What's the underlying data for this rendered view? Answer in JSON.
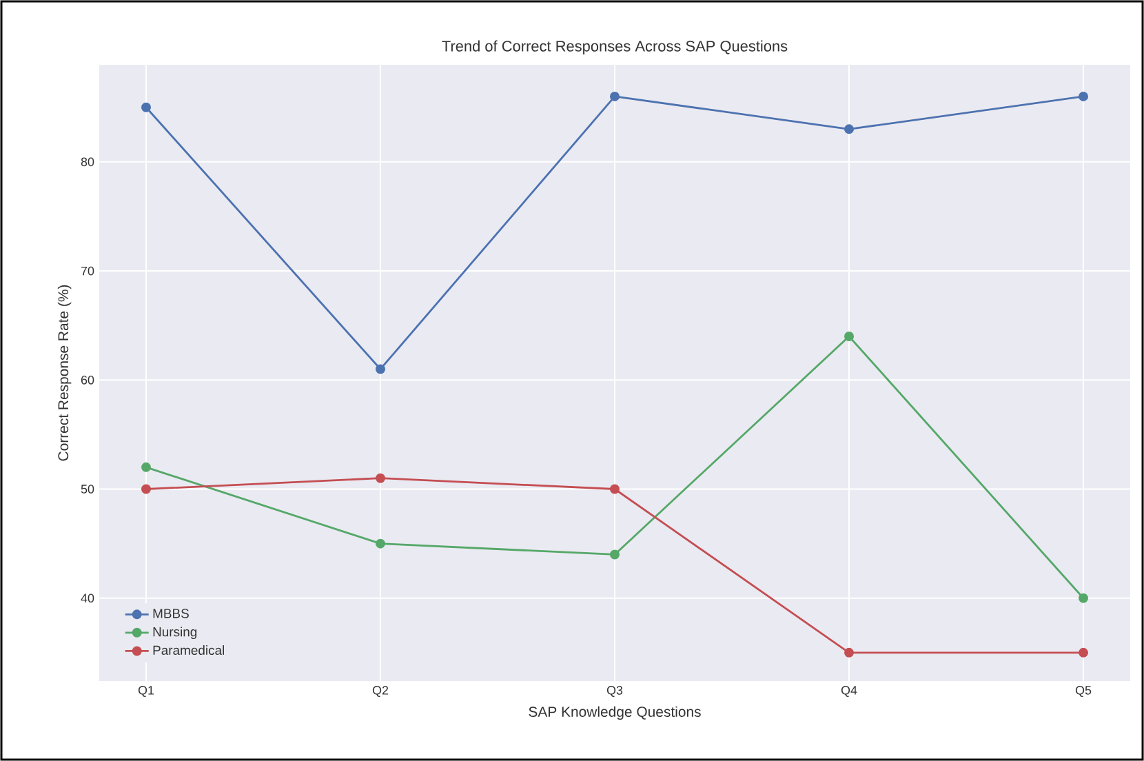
{
  "chart_data": {
    "type": "line",
    "title": "Trend of Correct Responses Across SAP Questions",
    "xlabel": "SAP Knowledge Questions",
    "ylabel": "Correct Response Rate (%)",
    "categories": [
      "Q1",
      "Q2",
      "Q3",
      "Q4",
      "Q5"
    ],
    "series": [
      {
        "name": "MBBS",
        "color": "#4c72b0",
        "values": [
          85,
          61,
          86,
          83,
          86
        ]
      },
      {
        "name": "Nursing",
        "color": "#55a868",
        "values": [
          52,
          45,
          44,
          64,
          40
        ]
      },
      {
        "name": "Paramedical",
        "color": "#c44e52",
        "values": [
          50,
          51,
          50,
          35,
          35
        ]
      }
    ],
    "ylim": [
      32.4,
      88.9
    ],
    "yticks": [
      40,
      50,
      60,
      70,
      80
    ],
    "grid": true,
    "legend": "bottom left",
    "marker": "circle",
    "line_style": "solid"
  }
}
